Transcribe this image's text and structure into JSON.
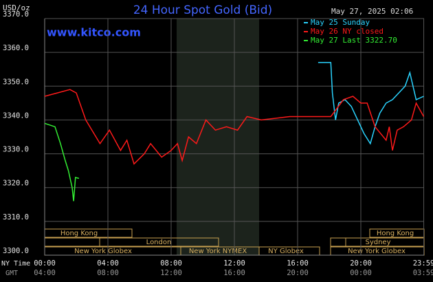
{
  "chart_data": {
    "type": "line",
    "title": "24 Hour Spot Gold (Bid)",
    "unit_label": "USD/oz",
    "timestamp": "May 27, 2025 02:06",
    "site": "www.kitco.com",
    "x_axis_label": "NY Time",
    "x2_axis_label": "GMT",
    "xlim": [
      0,
      24
    ],
    "xticks": [
      {
        "value": 0,
        "label": "00:00"
      },
      {
        "value": 4,
        "label": "04:00"
      },
      {
        "value": 8,
        "label": "08:00"
      },
      {
        "value": 12,
        "label": "12:00"
      },
      {
        "value": 16,
        "label": "16:00"
      },
      {
        "value": 20,
        "label": "20:00"
      },
      {
        "value": 23.98,
        "label": "23:59"
      }
    ],
    "x2ticks": [
      "04:00",
      "08:00",
      "12:00",
      "16:00",
      "20:00",
      "00:00",
      "03:59"
    ],
    "ylim": [
      3300,
      3370
    ],
    "yticks": [
      {
        "value": 3300,
        "label": "3300.0"
      },
      {
        "value": 3310,
        "label": "3310.0"
      },
      {
        "value": 3320,
        "label": "3320.0"
      },
      {
        "value": 3330,
        "label": "3330.0"
      },
      {
        "value": 3340,
        "label": "3340.0"
      },
      {
        "value": 3350,
        "label": "3350.0"
      },
      {
        "value": 3360,
        "label": "3360.0"
      },
      {
        "value": 3370,
        "label": "3370.0"
      }
    ],
    "grid": true,
    "sessions": [
      "Hong Kong",
      "London",
      "New York Globex",
      "New York NYMEX",
      "NY Globex",
      "Hong Kong",
      "Sydney",
      "New York Globex"
    ],
    "series": [
      {
        "name": "May 25 Sunday",
        "color": "#2ad4ff",
        "x": [
          17.3,
          18.1,
          18.2,
          18.4,
          18.6,
          19.0,
          19.4,
          19.8,
          20.2,
          20.6,
          20.9,
          21.2,
          21.6,
          22.0,
          22.4,
          22.8,
          23.1,
          23.5,
          23.98
        ],
        "values": [
          3357,
          3357,
          3348,
          3340,
          3345,
          3346,
          3344,
          3340,
          3336,
          3333,
          3338,
          3342,
          3345,
          3346,
          3348,
          3350,
          3354,
          3346,
          3347
        ]
      },
      {
        "name": "May 26 NY closed",
        "color": "#ff1a1a",
        "x": [
          0,
          0.8,
          1.6,
          2.0,
          2.6,
          3.5,
          4.1,
          4.8,
          5.2,
          5.65,
          6.3,
          6.7,
          7.4,
          8.0,
          8.4,
          8.7,
          9.1,
          9.6,
          10.2,
          10.8,
          11.5,
          12.2,
          12.8,
          13.7,
          14.6,
          15.5,
          18.1,
          18.9,
          19.5,
          20.0,
          20.4,
          20.9,
          21.6,
          21.8,
          22.0,
          22.3,
          22.7,
          23.2,
          23.5,
          23.98
        ],
        "values": [
          3347,
          3348,
          3349,
          3348,
          3340,
          3333,
          3337,
          3331,
          3334,
          3327,
          3330,
          3333,
          3329,
          3331,
          3333,
          3328,
          3335,
          3333,
          3340,
          3337,
          3338,
          3337,
          3341,
          3340,
          3340.5,
          3341,
          3341,
          3346,
          3347,
          3345,
          3345,
          3338,
          3334,
          3338,
          3331,
          3337,
          3338,
          3340,
          3345,
          3341
        ]
      },
      {
        "name": "May 27 Last 3322.70",
        "color": "#33ee33",
        "x": [
          0,
          0.65,
          1.0,
          1.3,
          1.5,
          1.74,
          1.83,
          1.95,
          2.17
        ],
        "values": [
          3339,
          3338,
          3333,
          3328,
          3325,
          3320,
          3316,
          3323,
          3322.7
        ]
      }
    ]
  }
}
